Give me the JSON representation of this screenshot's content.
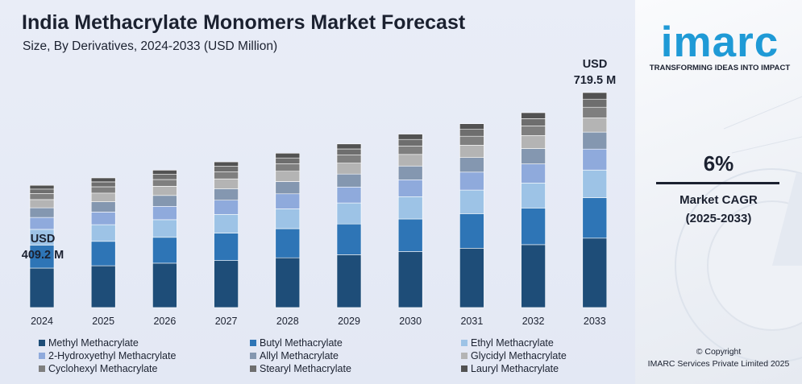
{
  "chart_data": {
    "type": "bar",
    "stacked": true,
    "title": "India Methacrylate Monomers Market Forecast",
    "subtitle": "Size, By Derivatives, 2024-2033 (USD Million)",
    "categories": [
      "2024",
      "2025",
      "2026",
      "2027",
      "2028",
      "2029",
      "2030",
      "2031",
      "2032",
      "2033"
    ],
    "totals": [
      409.2,
      433.8,
      459.8,
      487.4,
      516.6,
      547.6,
      580.5,
      615.3,
      652.2,
      719.5
    ],
    "series": [
      {
        "name": "Methyl Methacrylate",
        "color": "#1e4d78",
        "values": [
          132.0,
          140.0,
          148.4,
          157.3,
          166.7,
          176.7,
          187.3,
          198.5,
          210.4,
          232.2
        ]
      },
      {
        "name": "Butyl Methacrylate",
        "color": "#2e75b6",
        "values": [
          77.0,
          81.6,
          86.5,
          91.7,
          97.2,
          103.0,
          109.2,
          115.8,
          122.7,
          135.4
        ]
      },
      {
        "name": "Ethyl Methacrylate",
        "color": "#9dc3e6",
        "values": [
          52.6,
          55.8,
          59.1,
          62.7,
          66.4,
          70.4,
          74.6,
          79.1,
          83.9,
          92.5
        ]
      },
      {
        "name": "2-Hydroxyethyl Methacrylate",
        "color": "#8faadc",
        "values": [
          39.9,
          42.3,
          44.8,
          47.5,
          50.4,
          53.4,
          56.6,
          60.0,
          63.6,
          70.2
        ]
      },
      {
        "name": "Allyl Methacrylate",
        "color": "#8497b0",
        "values": [
          32.4,
          34.3,
          36.4,
          38.6,
          40.9,
          43.3,
          45.9,
          48.7,
          51.6,
          56.9
        ]
      },
      {
        "name": "Glycidyl Methacrylate",
        "color": "#b4b4b4",
        "values": [
          27.4,
          29.1,
          30.8,
          32.7,
          34.6,
          36.7,
          38.9,
          41.2,
          43.7,
          48.2
        ]
      },
      {
        "name": "Cyclohexyl Methacrylate",
        "color": "#7f7f7f",
        "values": [
          20.0,
          21.2,
          22.5,
          23.8,
          25.3,
          26.8,
          28.4,
          30.1,
          31.9,
          35.2
        ]
      },
      {
        "name": "Stearyl Methacrylate",
        "color": "#6e6e6e",
        "values": [
          15.3,
          16.2,
          17.2,
          18.2,
          19.3,
          20.5,
          21.7,
          23.0,
          24.4,
          26.9
        ]
      },
      {
        "name": "Lauryl Methacrylate",
        "color": "#525252",
        "values": [
          12.6,
          13.3,
          14.1,
          14.9,
          15.8,
          16.8,
          17.9,
          18.9,
          20.0,
          22.0
        ]
      }
    ],
    "ylim": [
      0,
      760
    ],
    "grid": false,
    "legend_position": "bottom",
    "annotations": {
      "first": {
        "line1": "USD",
        "line2": "409.2 M"
      },
      "last": {
        "line1": "USD",
        "line2": "719.5 M"
      }
    }
  },
  "branding": {
    "logo_text": "imarc",
    "tagline": "TRANSFORMING IDEAS INTO IMPACT",
    "accent_color": "#1f9ad6"
  },
  "cagr": {
    "value": "6%",
    "label": "Market CAGR",
    "period": "(2025-2033)"
  },
  "footer": {
    "copyright": "© Copyright",
    "company": "IMARC Services Private Limited 2025"
  }
}
